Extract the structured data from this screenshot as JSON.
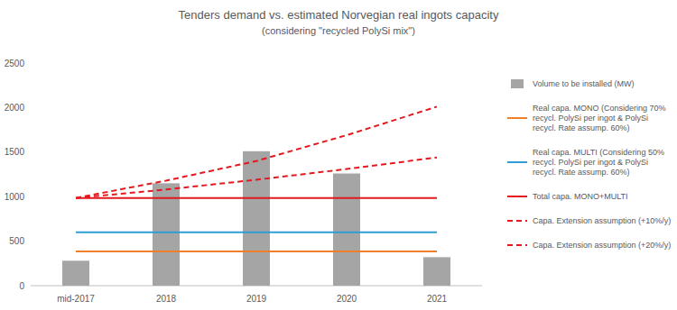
{
  "chart_data": {
    "type": "bar",
    "title": "Tenders demand vs. estimated Norvegian real ingots capacity",
    "subtitle": "(considering \"recycled PolySi mix\")",
    "categories": [
      "mid-2017",
      "2018",
      "2019",
      "2020",
      "2021"
    ],
    "series": [
      {
        "name": "Volume to be installed (MW)",
        "type": "bar",
        "color": "#a5a5a5",
        "values": [
          280,
          1150,
          1510,
          1260,
          320
        ]
      },
      {
        "name": "Real capa. MONO (Considering 70% recycl. PolySi per ingot & PolySi recycl. Rate assump. 60%)",
        "type": "line",
        "color": "#f07f2c",
        "line_style": "solid",
        "values": [
          385,
          385,
          385,
          385,
          385
        ]
      },
      {
        "name": "Real capa. MULTI (Considering 50% recycl. PolySi per ingot & PolySi recycl. Rate assump. 60%)",
        "type": "line",
        "color": "#2f9fd3",
        "line_style": "solid",
        "values": [
          600,
          600,
          600,
          600,
          600
        ]
      },
      {
        "name": "Total capa. MONO+MULTI",
        "type": "line",
        "color": "#e3191f",
        "line_style": "solid",
        "values": [
          985,
          985,
          985,
          985,
          985
        ]
      },
      {
        "name": "Capa. Extension assumption (+10%/y)",
        "type": "line",
        "color": "#e3191f",
        "line_style": "dashed",
        "values": [
          985,
          1080,
          1190,
          1310,
          1440
        ]
      },
      {
        "name": "Capa. Extension assumption (+20%/y)",
        "type": "line",
        "color": "#e3191f",
        "line_style": "dashed",
        "values": [
          985,
          1180,
          1400,
          1690,
          2010
        ]
      }
    ],
    "ylim": [
      0,
      2500
    ],
    "yticks": [
      0,
      500,
      1000,
      1500,
      2000,
      2500
    ],
    "grid": false,
    "legend": "right"
  }
}
